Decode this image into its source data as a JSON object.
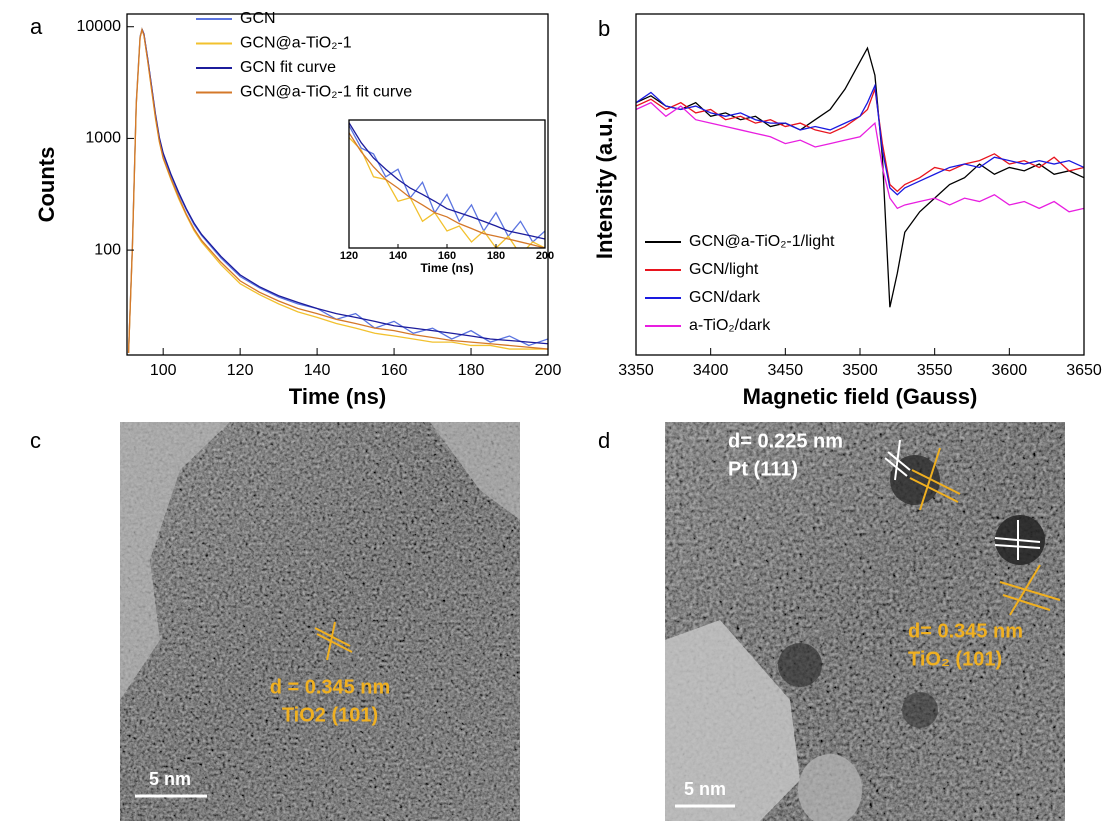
{
  "chart_data": [
    {
      "type": "line",
      "panel_label": "a",
      "xlabel": "Time (ns)",
      "ylabel": "Counts",
      "yscale": "log",
      "x": [
        91,
        92,
        93,
        94,
        94.5,
        95,
        96,
        97,
        98,
        99,
        100,
        102,
        104,
        106,
        108,
        110,
        115,
        120,
        125,
        130,
        135,
        140,
        145,
        150,
        155,
        160,
        165,
        170,
        175,
        180,
        185,
        190,
        195,
        200
      ],
      "xlim": [
        90.6,
        200
      ],
      "ylim": [
        11.5,
        13000
      ],
      "xticks": [
        100,
        120,
        140,
        160,
        180,
        200
      ],
      "yticks": [
        100,
        1000,
        10000
      ],
      "legend": "upper center",
      "series": [
        {
          "name": "GCN",
          "color": "#5b74e0",
          "values": [
            12,
            110,
            2100,
            8200,
            9500,
            8600,
            5100,
            2900,
            1600,
            1000,
            720,
            470,
            320,
            230,
            170,
            135,
            85,
            58,
            46,
            38,
            33,
            30,
            24,
            27,
            20,
            23,
            18,
            20,
            16,
            19,
            15,
            17,
            14,
            16
          ]
        },
        {
          "name": "GCN@a-TiO₂-1",
          "color": "#f2c12e",
          "values": [
            12,
            105,
            2000,
            8000,
            9400,
            8400,
            4900,
            2700,
            1500,
            930,
            660,
            430,
            290,
            205,
            150,
            118,
            74,
            50,
            40,
            33,
            28,
            25,
            22,
            20,
            18,
            17,
            16,
            15,
            15,
            14,
            14,
            13,
            13,
            13
          ]
        },
        {
          "name": "GCN fit curve",
          "color": "#1c1c9c",
          "values": [
            null,
            null,
            null,
            null,
            9500,
            8600,
            5100,
            2900,
            1650,
            1020,
            740,
            480,
            330,
            235,
            175,
            138,
            88,
            60,
            47,
            39,
            34,
            30,
            27,
            25,
            23,
            21,
            20,
            19,
            18,
            17,
            16,
            15.5,
            15,
            14.5
          ]
        },
        {
          "name": "GCN@a-TiO₂-1 fit curve",
          "color": "#d4782a",
          "values": [
            12,
            105,
            2000,
            8000,
            9400,
            8400,
            4900,
            2750,
            1550,
            950,
            670,
            440,
            300,
            210,
            155,
            122,
            78,
            53,
            42,
            35,
            30,
            27,
            24,
            22,
            20,
            19,
            17.5,
            16.5,
            15.5,
            15,
            14.5,
            14,
            13.5,
            13
          ]
        }
      ]
    },
    {
      "type": "line",
      "xlabel": "Time (ns)",
      "yscale": "log",
      "x": [
        120,
        125,
        130,
        135,
        140,
        145,
        150,
        155,
        160,
        165,
        170,
        175,
        180,
        185,
        190,
        195,
        200
      ],
      "xlim": [
        120,
        200
      ],
      "ylim": [
        13,
        62
      ],
      "xticks": [
        120,
        140,
        160,
        180,
        200
      ],
      "series": [
        {
          "color": "#5b74e0",
          "values": [
            58,
            44,
            41,
            31,
            34,
            24,
            29,
            20,
            25,
            18,
            22,
            16,
            20,
            15,
            18,
            14,
            16
          ]
        },
        {
          "color": "#f2c12e",
          "values": [
            50,
            43,
            31,
            30,
            23,
            24,
            18,
            20,
            16,
            17,
            14,
            16,
            13,
            15,
            12,
            14,
            13
          ]
        },
        {
          "color": "#1c1c9c",
          "values": [
            60,
            47,
            39,
            34,
            30,
            27,
            25,
            23,
            21,
            20,
            19,
            18,
            17,
            16,
            15.5,
            15,
            14.5
          ]
        },
        {
          "color": "#d4782a",
          "values": [
            53,
            42,
            35,
            30,
            27,
            24,
            22,
            20,
            19,
            17.5,
            16.5,
            15.5,
            15,
            14.5,
            14,
            13.5,
            13
          ]
        }
      ]
    },
    {
      "type": "line",
      "panel_label": "b",
      "xlabel": "Magnetic field (Gauss)",
      "ylabel": "Intensity (a.u.)",
      "x": [
        3350,
        3360,
        3370,
        3380,
        3390,
        3400,
        3410,
        3420,
        3430,
        3440,
        3450,
        3460,
        3470,
        3480,
        3490,
        3500,
        3505,
        3510,
        3515,
        3520,
        3525,
        3530,
        3540,
        3550,
        3560,
        3570,
        3580,
        3590,
        3600,
        3610,
        3620,
        3630,
        3640,
        3650
      ],
      "xlim": [
        3350,
        3650
      ],
      "ylim": [
        0,
        100
      ],
      "xticks": [
        3350,
        3400,
        3450,
        3500,
        3550,
        3600,
        3650
      ],
      "legend": "lower left",
      "series": [
        {
          "name": "GCN@a-TiO₂-1/light",
          "color": "#000000",
          "values": [
            74,
            76,
            73,
            72,
            74,
            70,
            71,
            69,
            70,
            67,
            68,
            66,
            69,
            72,
            78,
            86,
            90,
            82,
            58,
            14,
            24,
            36,
            42,
            46,
            50,
            52,
            56,
            53,
            55,
            54,
            56,
            53,
            54,
            52
          ]
        },
        {
          "name": "GCN/light",
          "color": "#e8141e",
          "values": [
            73,
            75,
            72,
            74,
            71,
            72,
            69,
            70,
            68,
            69,
            67,
            68,
            66,
            65,
            67,
            70,
            72,
            78,
            62,
            50,
            48,
            50,
            52,
            55,
            54,
            56,
            57,
            59,
            56,
            57,
            55,
            58,
            54,
            55
          ]
        },
        {
          "name": "GCN/dark",
          "color": "#1a1ae0",
          "values": [
            74,
            77,
            73,
            72,
            73,
            71,
            70,
            71,
            69,
            68,
            68,
            66,
            67,
            66,
            68,
            70,
            74,
            79,
            60,
            49,
            47,
            49,
            51,
            53,
            55,
            56,
            55,
            58,
            57,
            56,
            57,
            56,
            57,
            55
          ]
        },
        {
          "name": "a-TiO₂/dark",
          "color": "#e81ee0",
          "values": [
            72,
            74,
            70,
            73,
            69,
            68,
            67,
            66,
            65,
            64,
            62,
            63,
            61,
            62,
            63,
            64,
            66,
            68,
            55,
            46,
            43,
            44,
            45,
            46,
            44,
            46,
            45,
            47,
            44,
            45,
            43,
            45,
            42,
            43
          ]
        }
      ]
    }
  ],
  "images": [
    {
      "panel_label": "c",
      "annotations": [
        "d = 0.345 nm",
        "TiO2 (101)"
      ],
      "scale_bar": "5 nm"
    },
    {
      "panel_label": "d",
      "annotations": [
        "d= 0.225 nm",
        "Pt (111)",
        "d= 0.345 nm",
        "TiO₂ (101)"
      ],
      "scale_bar": "5 nm"
    }
  ]
}
